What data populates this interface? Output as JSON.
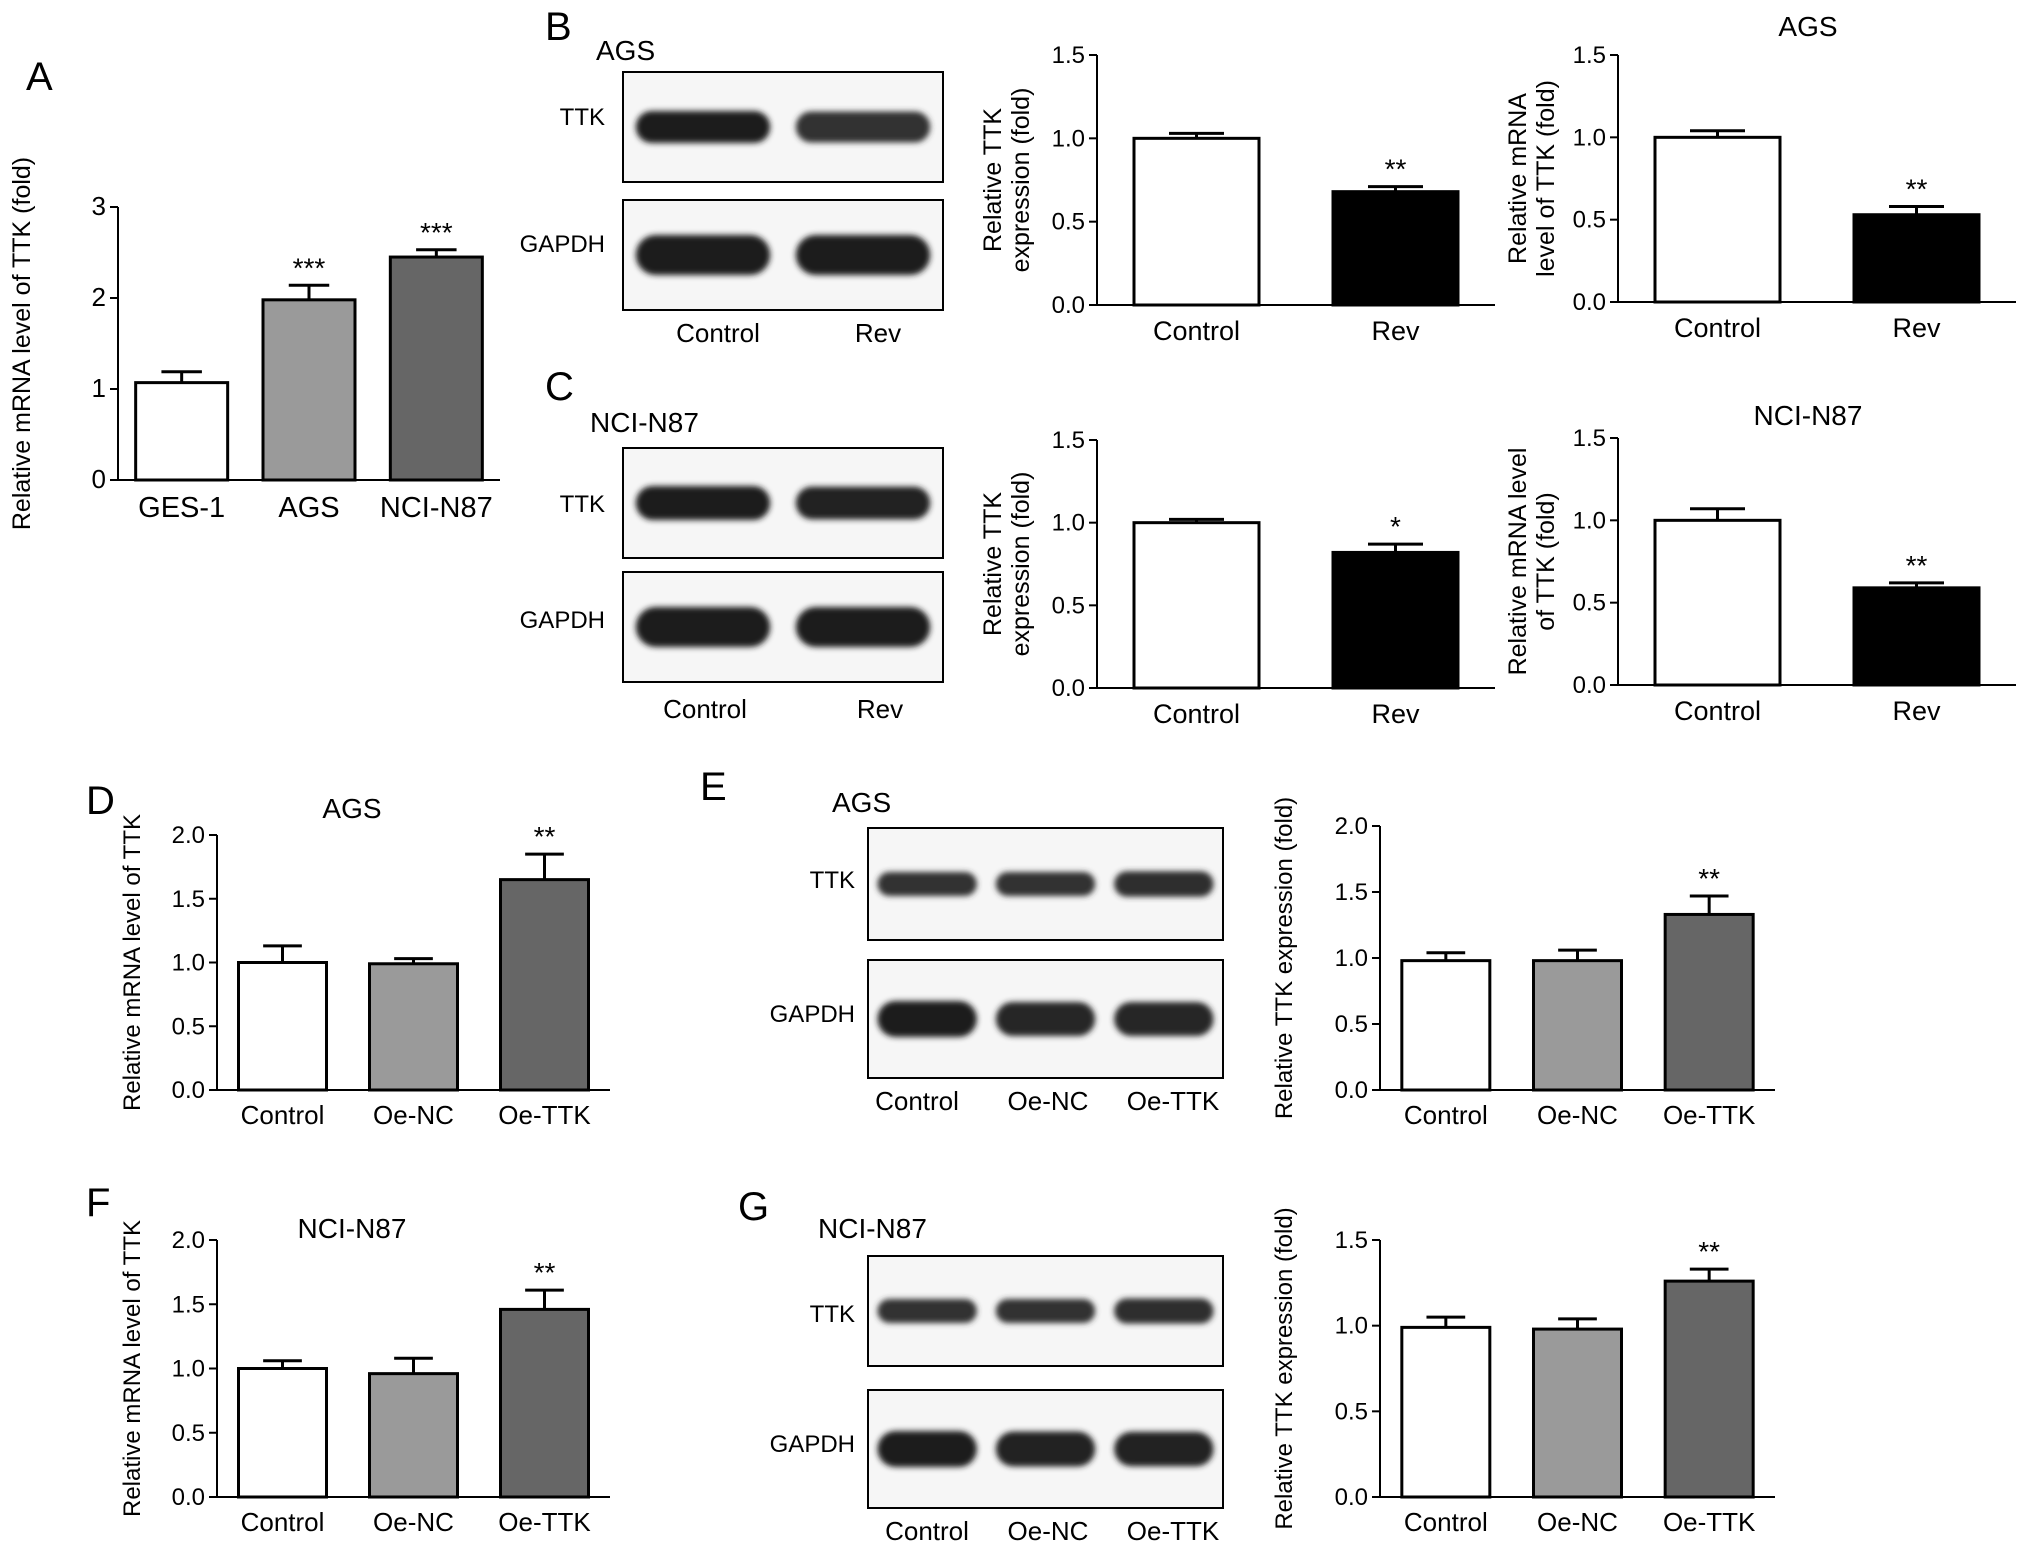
{
  "colors": {
    "control": "#ffffff",
    "gray": "#9a9a9a",
    "dark": "#666666",
    "black": "#000000",
    "stroke": "#000000"
  },
  "chart_data": [
    {
      "panel": "A",
      "type": "bar",
      "title": "",
      "ylabel": "Relative mRNA level of TTK (fold)",
      "ylim": [
        0,
        3
      ],
      "yticks": [
        0,
        1,
        2,
        3
      ],
      "tick_labels": [
        "0",
        "1",
        "2",
        "3"
      ],
      "categories": [
        "GES-1",
        "AGS",
        "NCI-N87"
      ],
      "values": [
        1.07,
        1.98,
        2.45
      ],
      "errors": [
        0.12,
        0.16,
        0.08
      ],
      "annotations": [
        "",
        "***",
        "***"
      ],
      "fills": [
        "control",
        "gray",
        "dark"
      ]
    },
    {
      "panel": "B",
      "type": "bar",
      "title": "",
      "ylabel": "Relative TTK expression (fold)",
      "ylim": [
        0,
        1.5
      ],
      "yticks": [
        0,
        0.5,
        1,
        1.5
      ],
      "tick_labels": [
        "0.0",
        "0.5",
        "1.0",
        "1.5"
      ],
      "categories": [
        "Control",
        "Rev"
      ],
      "values": [
        1.0,
        0.68
      ],
      "errors": [
        0.03,
        0.03
      ],
      "annotations": [
        "",
        "**"
      ],
      "fills": [
        "control",
        "black"
      ]
    },
    {
      "panel": "B",
      "type": "bar",
      "title": "AGS",
      "ylabel": "Relative mRNA level of TTK (fold)",
      "ylim": [
        0,
        1.5
      ],
      "yticks": [
        0,
        0.5,
        1,
        1.5
      ],
      "tick_labels": [
        "0.0",
        "0.5",
        "1.0",
        "1.5"
      ],
      "categories": [
        "Control",
        "Rev"
      ],
      "values": [
        1.0,
        0.53
      ],
      "errors": [
        0.04,
        0.05
      ],
      "annotations": [
        "",
        "**"
      ],
      "fills": [
        "control",
        "black"
      ]
    },
    {
      "panel": "C",
      "type": "bar",
      "title": "",
      "ylabel": "Relative TTK expression (fold)",
      "ylim": [
        0,
        1.5
      ],
      "yticks": [
        0,
        0.5,
        1,
        1.5
      ],
      "tick_labels": [
        "0.0",
        "0.5",
        "1.0",
        "1.5"
      ],
      "categories": [
        "Control",
        "Rev"
      ],
      "values": [
        1.0,
        0.82
      ],
      "errors": [
        0.02,
        0.05
      ],
      "annotations": [
        "",
        "*"
      ],
      "fills": [
        "control",
        "black"
      ]
    },
    {
      "panel": "C",
      "type": "bar",
      "title": "NCI-N87",
      "ylabel": "Relative mRNA level of TTK (fold)",
      "ylim": [
        0,
        1.5
      ],
      "yticks": [
        0,
        0.5,
        1,
        1.5
      ],
      "tick_labels": [
        "0.0",
        "0.5",
        "1.0",
        "1.5"
      ],
      "categories": [
        "Control",
        "Rev"
      ],
      "values": [
        1.0,
        0.59
      ],
      "errors": [
        0.07,
        0.03
      ],
      "annotations": [
        "",
        "**"
      ],
      "fills": [
        "control",
        "black"
      ]
    },
    {
      "panel": "D",
      "type": "bar",
      "title": "AGS",
      "ylabel": "Relative mRNA level of TTK",
      "ylim": [
        0,
        2
      ],
      "yticks": [
        0,
        0.5,
        1,
        1.5,
        2
      ],
      "tick_labels": [
        "0.0",
        "0.5",
        "1.0",
        "1.5",
        "2.0"
      ],
      "categories": [
        "Control",
        "Oe-NC",
        "Oe-TTK"
      ],
      "values": [
        1.0,
        0.99,
        1.65
      ],
      "errors": [
        0.13,
        0.04,
        0.2
      ],
      "annotations": [
        "",
        "",
        "**"
      ],
      "fills": [
        "control",
        "gray",
        "dark"
      ]
    },
    {
      "panel": "E",
      "type": "bar",
      "title": "",
      "ylabel": "Relative TTK expression (fold)",
      "ylim": [
        0,
        2
      ],
      "yticks": [
        0,
        0.5,
        1,
        1.5,
        2
      ],
      "tick_labels": [
        "0.0",
        "0.5",
        "1.0",
        "1.5",
        "2.0"
      ],
      "categories": [
        "Control",
        "Oe-NC",
        "Oe-TTK"
      ],
      "values": [
        0.98,
        0.98,
        1.33
      ],
      "errors": [
        0.06,
        0.08,
        0.14
      ],
      "annotations": [
        "",
        "",
        "**"
      ],
      "fills": [
        "control",
        "gray",
        "dark"
      ]
    },
    {
      "panel": "F",
      "type": "bar",
      "title": "NCI-N87",
      "ylabel": "Relative mRNA level of TTK",
      "ylim": [
        0,
        2
      ],
      "yticks": [
        0,
        0.5,
        1,
        1.5,
        2
      ],
      "tick_labels": [
        "0.0",
        "0.5",
        "1.0",
        "1.5",
        "2.0"
      ],
      "categories": [
        "Control",
        "Oe-NC",
        "Oe-TTK"
      ],
      "values": [
        1.0,
        0.96,
        1.46
      ],
      "errors": [
        0.06,
        0.12,
        0.15
      ],
      "annotations": [
        "",
        "",
        "**"
      ],
      "fills": [
        "control",
        "gray",
        "dark"
      ]
    },
    {
      "panel": "G",
      "type": "bar",
      "title": "",
      "ylabel": "Relative TTK expression (fold)",
      "ylim": [
        0,
        1.5
      ],
      "yticks": [
        0,
        0.5,
        1,
        1.5
      ],
      "tick_labels": [
        "0.0",
        "0.5",
        "1.0",
        "1.5"
      ],
      "categories": [
        "Control",
        "Oe-NC",
        "Oe-TTK"
      ],
      "values": [
        0.99,
        0.98,
        1.26
      ],
      "errors": [
        0.06,
        0.06,
        0.07
      ],
      "annotations": [
        "",
        "",
        "**"
      ],
      "fills": [
        "control",
        "gray",
        "dark"
      ]
    }
  ],
  "blots": [
    {
      "panel": "B",
      "title": "AGS",
      "rows": [
        "TTK",
        "GAPDH"
      ],
      "lanes": [
        "Control",
        "Rev"
      ],
      "intensity": [
        [
          1.0,
          0.55
        ],
        [
          1.0,
          1.0
        ]
      ]
    },
    {
      "panel": "C",
      "title": "NCI-N87",
      "rows": [
        "TTK",
        "GAPDH"
      ],
      "lanes": [
        "Control",
        "Rev"
      ],
      "intensity": [
        [
          1.0,
          0.85
        ],
        [
          1.0,
          1.0
        ]
      ]
    },
    {
      "panel": "E",
      "title": "AGS",
      "rows": [
        "TTK",
        "GAPDH"
      ],
      "lanes": [
        "Control",
        "Oe-NC",
        "Oe-TTK"
      ],
      "intensity": [
        [
          0.5,
          0.5,
          0.62
        ],
        [
          1.0,
          0.8,
          0.8
        ]
      ]
    },
    {
      "panel": "G",
      "title": "NCI-N87",
      "rows": [
        "TTK",
        "GAPDH"
      ],
      "lanes": [
        "Control",
        "Oe-NC",
        "Oe-TTK"
      ],
      "intensity": [
        [
          0.5,
          0.5,
          0.6
        ],
        [
          1.0,
          0.9,
          0.85
        ]
      ]
    }
  ],
  "panel_letters": [
    "A",
    "B",
    "C",
    "D",
    "E",
    "F",
    "G"
  ]
}
